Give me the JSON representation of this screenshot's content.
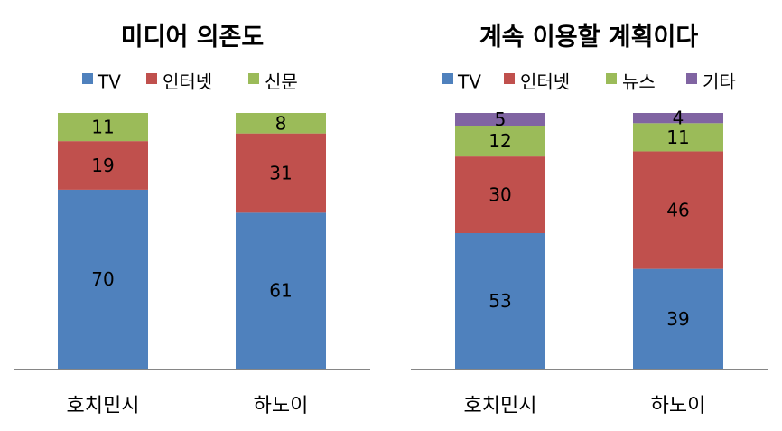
{
  "chart_data": [
    {
      "type": "bar",
      "stacked": true,
      "title": "미디어 의존도",
      "categories": [
        "호치민시",
        "하노이"
      ],
      "series": [
        {
          "name": "TV",
          "values": [
            70,
            61
          ],
          "color": "#4f81bd"
        },
        {
          "name": "인터넷",
          "values": [
            19,
            31
          ],
          "color": "#c0504d"
        },
        {
          "name": "신문",
          "values": [
            11,
            8
          ],
          "color": "#9bbb59"
        }
      ],
      "ylim": [
        0,
        100
      ],
      "legend": "top",
      "grid": false
    },
    {
      "type": "bar",
      "stacked": true,
      "title": "계속 이용할 계획이다",
      "categories": [
        "호치민시",
        "하노이"
      ],
      "series": [
        {
          "name": "TV",
          "values": [
            53,
            39
          ],
          "color": "#4f81bd"
        },
        {
          "name": "인터넷",
          "values": [
            30,
            46
          ],
          "color": "#c0504d"
        },
        {
          "name": "뉴스",
          "values": [
            12,
            11
          ],
          "color": "#9bbb59"
        },
        {
          "name": "기타",
          "values": [
            5,
            4
          ],
          "color": "#8064a2"
        }
      ],
      "ylim": [
        0,
        100
      ],
      "legend": "top",
      "grid": false
    }
  ]
}
